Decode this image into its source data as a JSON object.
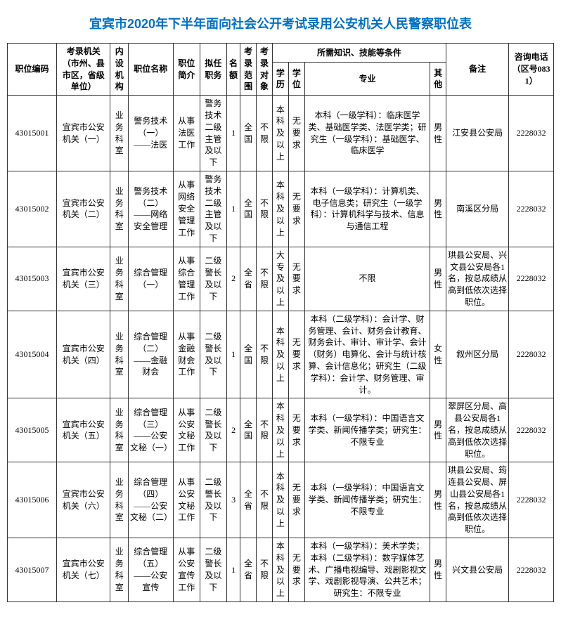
{
  "title": "宜宾市2020年下半年面向社会公开考试录用公安机关人民警察职位表",
  "columns": {
    "code": "职位编码",
    "org": "考录机关（市州、县市区，省级单位）",
    "dept": "内设机构",
    "pname": "职位名称",
    "pdesc": "职位简介",
    "duty": "拟任职务",
    "num": "名额",
    "scope": "考录范围",
    "target": "考录对象",
    "req": "所需知识、技能等条件",
    "edu": "学历",
    "degree": "学位",
    "major": "专业",
    "other": "其他",
    "remark": "备注",
    "phone": "咨询电话（区号0831）"
  },
  "rows": [
    {
      "code": "43015001",
      "org": "宜宾市公安机关（一）",
      "dept": "业务科室",
      "pname": "警务技术（一）——法医",
      "pdesc": "从事法医工作",
      "duty": "警务技术二级主管及以下",
      "num": "1",
      "scope": "全国",
      "target": "不限",
      "edu": "本科及以上",
      "degree": "无要求",
      "major": "本科（一级学科）：临床医学类、基础医学类、法医学类；研究生（一级学科）：基础医学、临床医学",
      "other": "男性",
      "remark": "江安县公安局",
      "phone": "2228032"
    },
    {
      "code": "43015002",
      "org": "宜宾市公安机关（二）",
      "dept": "业务科室",
      "pname": "警务技术（二）——网络安全管理",
      "pdesc": "从事网络安全管理工作",
      "duty": "警务技术二级主管及以下",
      "num": "1",
      "scope": "全国",
      "target": "不限",
      "edu": "本科及以上",
      "degree": "无要求",
      "major": "本科（一级学科）：计算机类、电子信息类；研究生（一级学科）：计算机科学与技术、信息与通信工程",
      "other": "男性",
      "remark": "南溪区分局",
      "phone": "2228032"
    },
    {
      "code": "43015003",
      "org": "宜宾市公安机关（三）",
      "dept": "业务科室",
      "pname": "综合管理（一）",
      "pdesc": "从事综合管理工作",
      "duty": "二级警长及以下",
      "num": "2",
      "scope": "全省",
      "target": "不限",
      "edu": "大专及以上",
      "degree": "无要求",
      "major": "不限",
      "other": "男性",
      "remark": "珙县公安局、兴文县公安局各1名，按总成绩从高到低依次选择职位。",
      "phone": "2228032"
    },
    {
      "code": "43015004",
      "org": "宜宾市公安机关（四）",
      "dept": "业务科室",
      "pname": "综合管理（二）——金融财会",
      "pdesc": "从事金融财会工作",
      "duty": "二级警长及以下",
      "num": "1",
      "scope": "全国",
      "target": "不限",
      "edu": "本科及以上",
      "degree": "无要求",
      "major": "本科（二级学科）：会计学、财务管理、会计、财务会计教育、财务会计、审计、审计学、会计（财务）电算化、会计与统计核算、会计信息化；研究生（二级学科）：会计学、财务管理、审计。",
      "other": "女性",
      "remark": "叙州区分局",
      "phone": "2228032"
    },
    {
      "code": "43015005",
      "org": "宜宾市公安机关（五）",
      "dept": "业务科室",
      "pname": "综合管理（三）——公安文秘（一）",
      "pdesc": "从事公安文秘工作",
      "duty": "二级警长及以下",
      "num": "2",
      "scope": "全国",
      "target": "不限",
      "edu": "本科及以上",
      "degree": "无要求",
      "major": "本科（一级学科）：中国语言文学类、新闻传播学类；研究生：不限专业",
      "other": "男性",
      "remark": "翠屏区分局、高县公安局各1名，按总成绩从高到低依次选择职位。",
      "phone": "2228032"
    },
    {
      "code": "43015006",
      "org": "宜宾市公安机关（六）",
      "dept": "业务科室",
      "pname": "综合管理（四）——公安文秘（二）",
      "pdesc": "从事公安文秘工作",
      "duty": "二级警长及以下",
      "num": "3",
      "scope": "全省",
      "target": "不限",
      "edu": "本科及以上",
      "degree": "无要求",
      "major": "本科（一级学科）：中国语言文学类、新闻传播学类；研究生：不限专业",
      "other": "男性",
      "remark": "珙县公安局、筠连县公安局、屏山县公安局各1名，按总成绩从高到低依次选择职位。",
      "phone": "2228032"
    },
    {
      "code": "43015007",
      "org": "宜宾市公安机关（七）",
      "dept": "业务科室",
      "pname": "综合管理（五）——公安宣传",
      "pdesc": "从事公安宣传工作",
      "duty": "二级警长及以下",
      "num": "1",
      "scope": "全省",
      "target": "不限",
      "edu": "本科及以上",
      "degree": "无要求",
      "major": "本科（一级学科）：美术学类；本科（二级学科）：数字媒体艺术、广播电视编导、戏剧影视文学、戏剧影视导演、公共艺术；研究生：不限专业",
      "other": "男性",
      "remark": "兴文县公安局",
      "phone": "2228032"
    }
  ]
}
